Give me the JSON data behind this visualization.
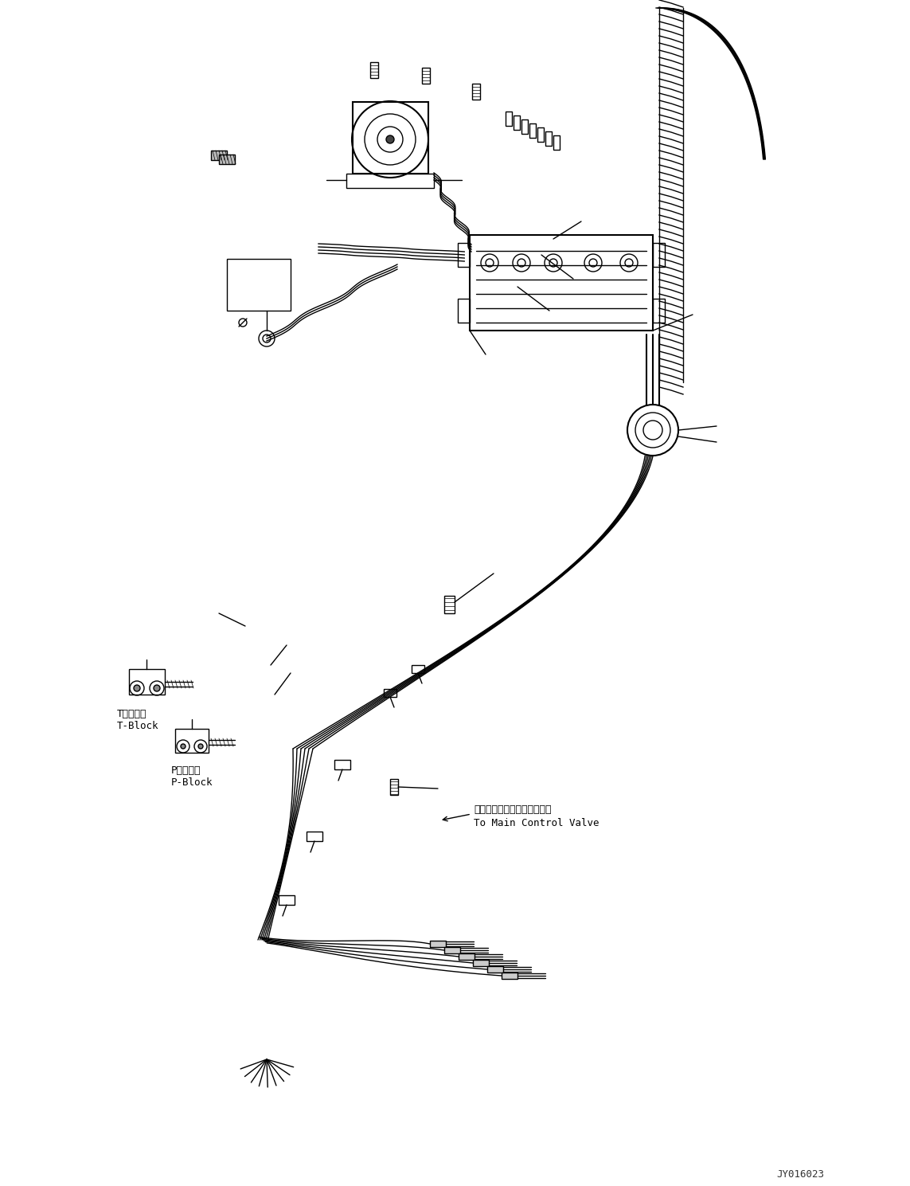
{
  "background_color": "#ffffff",
  "line_color": "#000000",
  "fig_width": 11.43,
  "fig_height": 14.89,
  "dpi": 100,
  "watermark": "JY016023",
  "label_t_block_jp": "Tブロック",
  "label_t_block_en": "T-Block",
  "label_p_block_jp": "Pブロック",
  "label_p_block_en": "P-Block",
  "label_valve_jp": "メインコントロールバルブへ",
  "label_valve_en": "To Main Control Valve"
}
